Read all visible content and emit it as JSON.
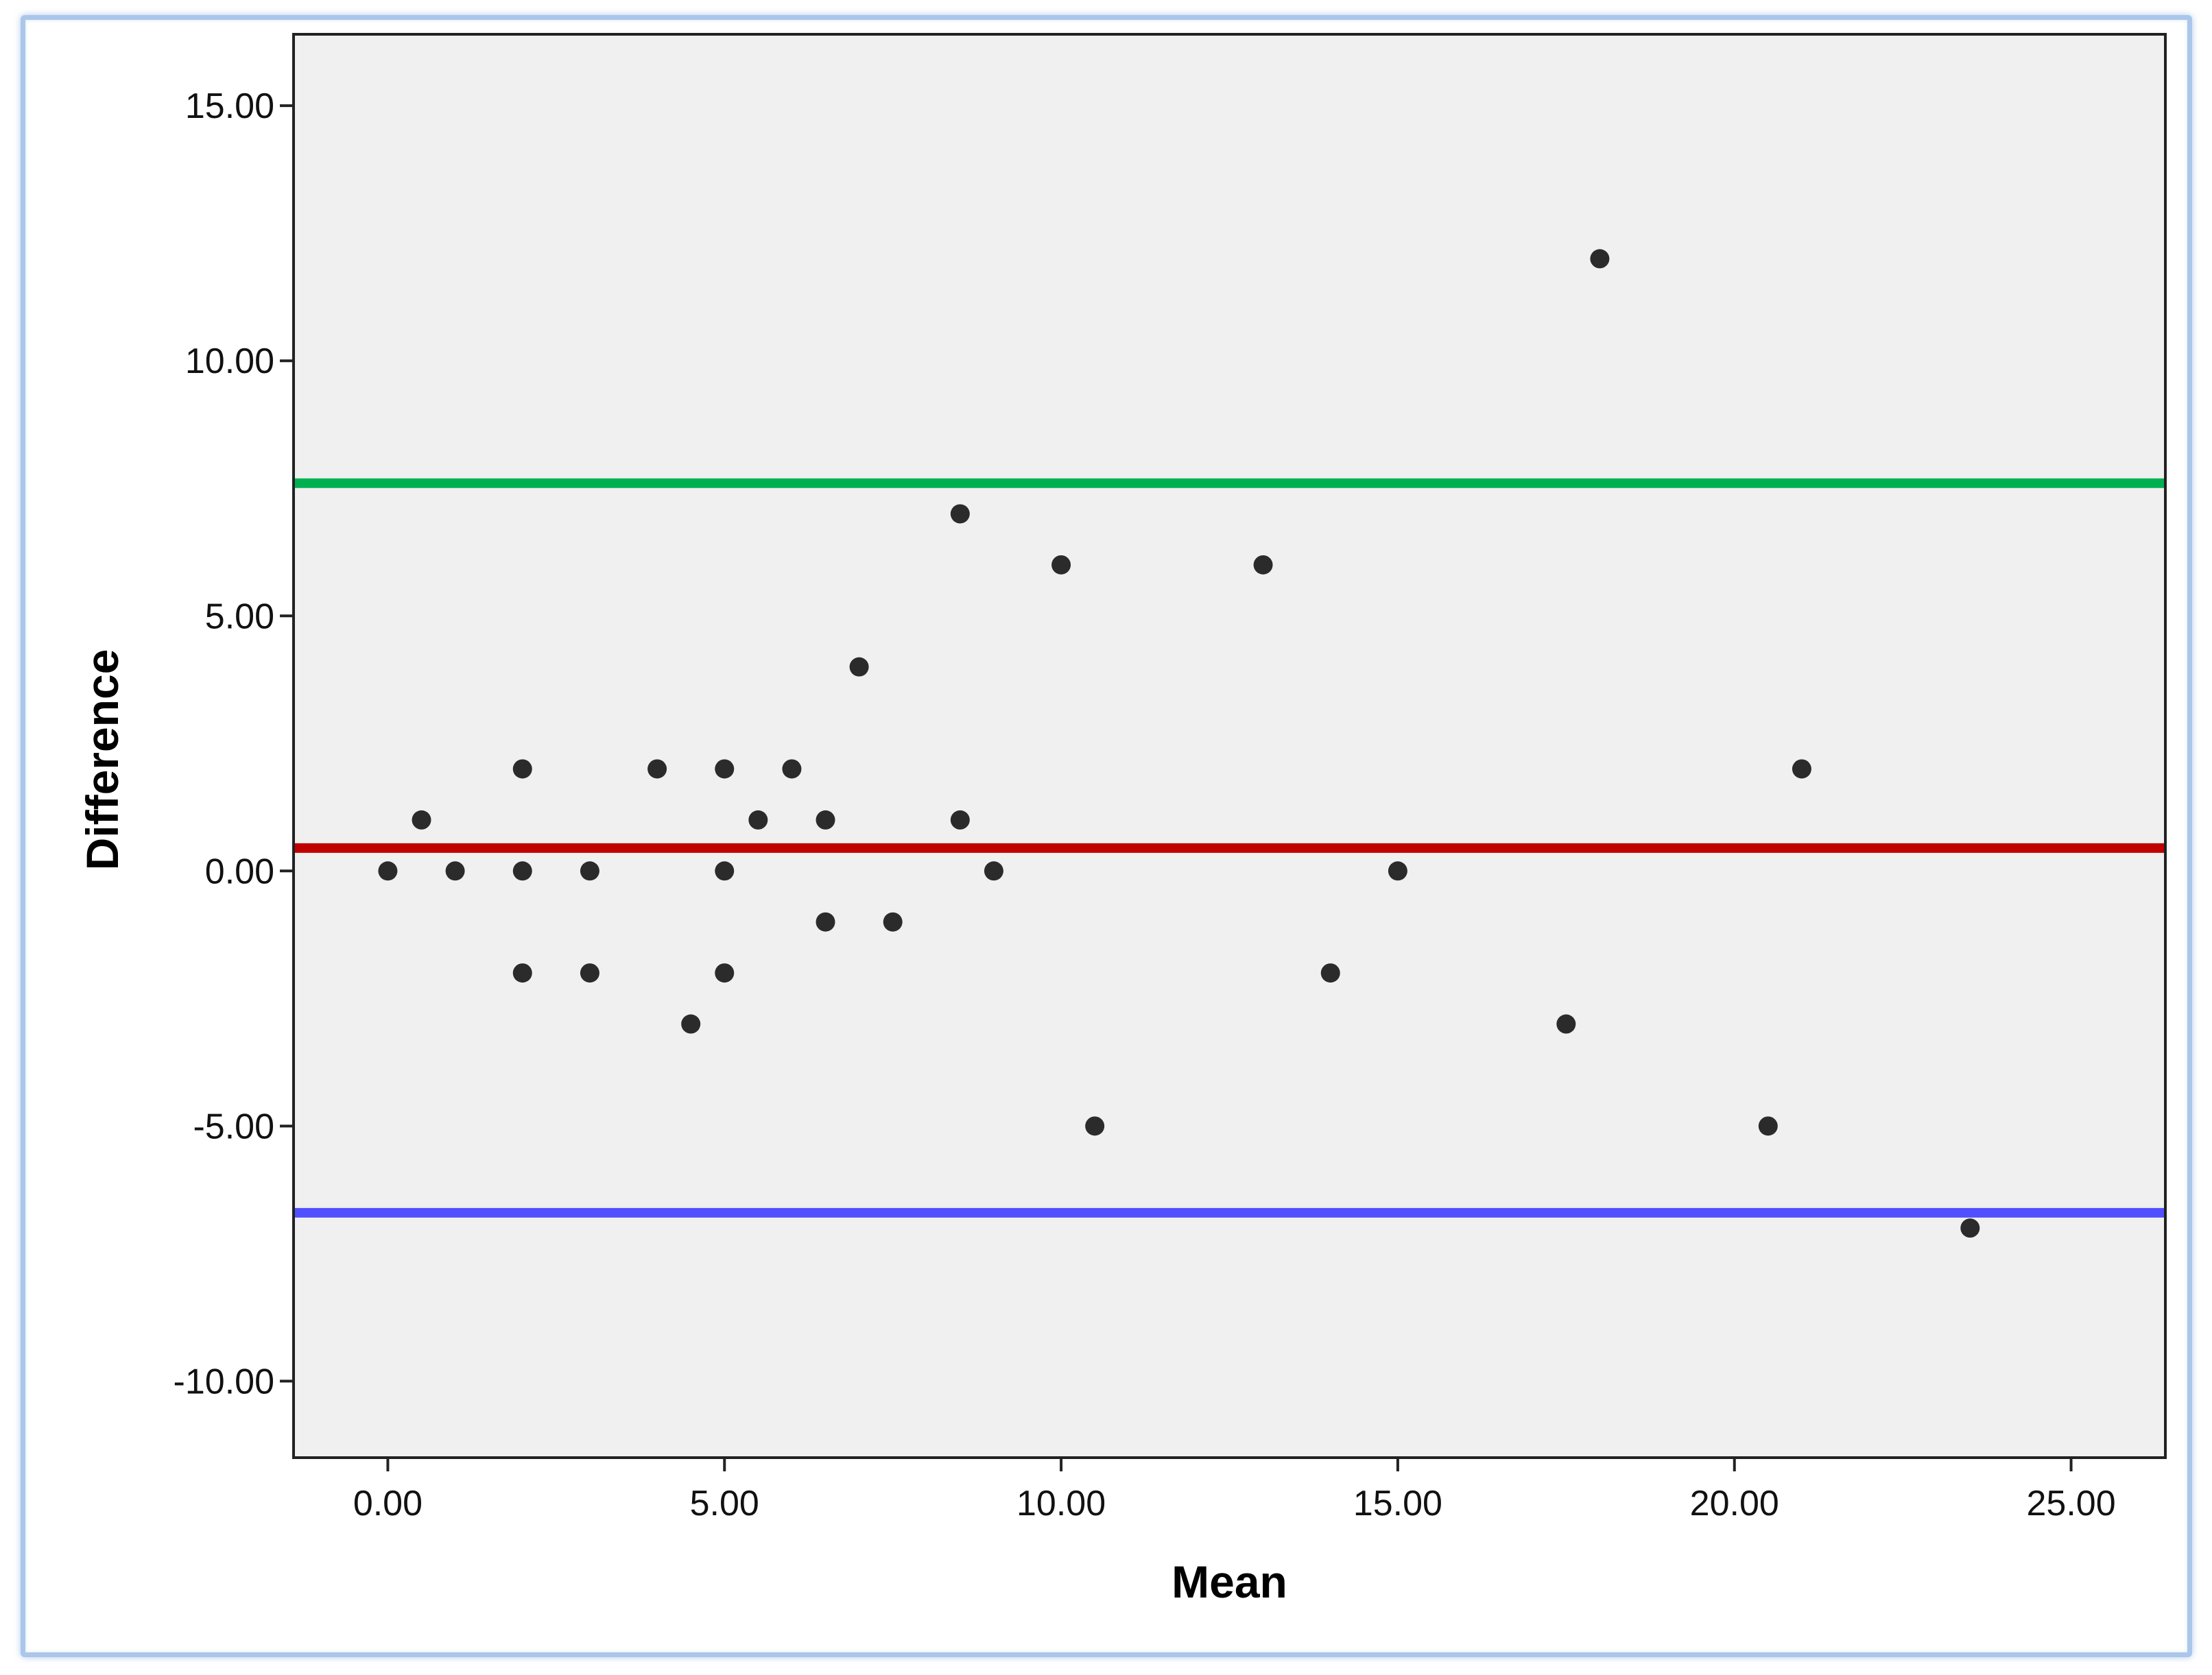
{
  "chart_data": {
    "type": "scatter",
    "title": "",
    "xlabel": "Mean",
    "ylabel": "Difference",
    "xlim": [
      -1.4,
      26.4
    ],
    "ylim": [
      -11.5,
      16.4
    ],
    "x_ticks": [
      0,
      5,
      10,
      15,
      20,
      25
    ],
    "x_tick_labels": [
      "0.00",
      "5.00",
      "10.00",
      "15.00",
      "20.00",
      "25.00"
    ],
    "y_ticks": [
      -10,
      -5,
      0,
      5,
      10,
      15
    ],
    "y_tick_labels": [
      "-10.00",
      "-5.00",
      "0.00",
      "5.00",
      "10.00",
      "15.00"
    ],
    "grid": false,
    "points": [
      {
        "x": 0,
        "y": 0
      },
      {
        "x": 0.5,
        "y": 1
      },
      {
        "x": 1,
        "y": 0
      },
      {
        "x": 2,
        "y": 2
      },
      {
        "x": 2,
        "y": 0
      },
      {
        "x": 2,
        "y": -2
      },
      {
        "x": 3,
        "y": 0
      },
      {
        "x": 3,
        "y": -2
      },
      {
        "x": 4,
        "y": 2
      },
      {
        "x": 4.5,
        "y": -3
      },
      {
        "x": 5,
        "y": 2
      },
      {
        "x": 5,
        "y": 0
      },
      {
        "x": 5,
        "y": -2
      },
      {
        "x": 5.5,
        "y": 1
      },
      {
        "x": 6,
        "y": 2
      },
      {
        "x": 6.5,
        "y": 1
      },
      {
        "x": 6.5,
        "y": -1
      },
      {
        "x": 7,
        "y": 4
      },
      {
        "x": 7.5,
        "y": -1
      },
      {
        "x": 8.5,
        "y": 7
      },
      {
        "x": 8.5,
        "y": 1
      },
      {
        "x": 9,
        "y": 0
      },
      {
        "x": 10,
        "y": 6
      },
      {
        "x": 10.5,
        "y": -5
      },
      {
        "x": 13,
        "y": 6
      },
      {
        "x": 14,
        "y": -2
      },
      {
        "x": 15,
        "y": 0
      },
      {
        "x": 17.5,
        "y": -3
      },
      {
        "x": 18,
        "y": 12
      },
      {
        "x": 20.5,
        "y": -5
      },
      {
        "x": 21,
        "y": 2
      },
      {
        "x": 23.5,
        "y": -7
      }
    ],
    "reference_lines": [
      {
        "y": 7.6,
        "color": "#00b050"
      },
      {
        "y": 0.45,
        "color": "#c00000"
      },
      {
        "y": -6.7,
        "color": "#5050ff"
      }
    ],
    "point_color": "#2b2b2b",
    "plot_background": "#f0f0f0"
  }
}
